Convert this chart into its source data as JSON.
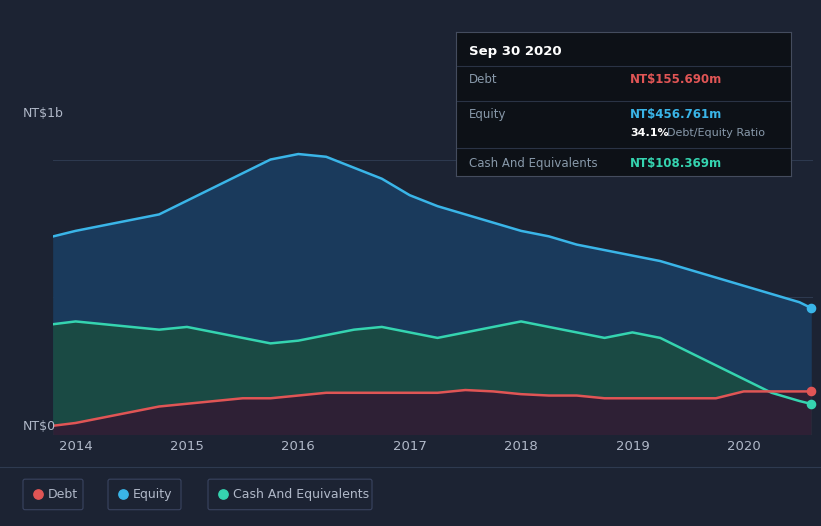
{
  "background_color": "#1c2333",
  "plot_bg_color": "#1c2333",
  "ylabel_top": "NT$1b",
  "ylabel_bottom": "NT$0",
  "x_ticks": [
    2014,
    2015,
    2016,
    2017,
    2018,
    2019,
    2020
  ],
  "debt_color": "#e05555",
  "equity_color": "#3ab5e8",
  "cash_color": "#35d4b0",
  "equity_fill_color": "#1a3a5c",
  "cash_fill_color": "#1a4a44",
  "debt_fill_color": "#2e2035",
  "grid_color": "#2e3a50",
  "text_color": "#b0b8c8",
  "tooltip_bg": "#0d1117",
  "tooltip_title_color": "#ffffff",
  "tooltip_debt_color": "#e05555",
  "tooltip_equity_color": "#3ab5e8",
  "tooltip_ratio_color": "#ffffff",
  "tooltip_cash_color": "#35d4b0",
  "tooltip_label_color": "#8899aa",
  "legend_bg": "#1c2333",
  "legend_border": "#3a4460",
  "tooltip_title": "Sep 30 2020",
  "tooltip_debt_val": "NT$155.690m",
  "tooltip_equity_val": "NT$456.761m",
  "tooltip_ratio_val": "34.1%",
  "tooltip_ratio_label": "Debt/Equity Ratio",
  "tooltip_cash_val": "NT$108.369m",
  "years": [
    2013.8,
    2014.0,
    2014.25,
    2014.5,
    2014.75,
    2015.0,
    2015.25,
    2015.5,
    2015.75,
    2016.0,
    2016.25,
    2016.5,
    2016.75,
    2017.0,
    2017.25,
    2017.5,
    2017.75,
    2018.0,
    2018.25,
    2018.5,
    2018.75,
    2019.0,
    2019.25,
    2019.5,
    2019.75,
    2020.0,
    2020.25,
    2020.5,
    2020.6
  ],
  "equity": [
    0.72,
    0.74,
    0.76,
    0.78,
    0.8,
    0.85,
    0.9,
    0.95,
    1.0,
    1.02,
    1.01,
    0.97,
    0.93,
    0.87,
    0.83,
    0.8,
    0.77,
    0.74,
    0.72,
    0.69,
    0.67,
    0.65,
    0.63,
    0.6,
    0.57,
    0.54,
    0.51,
    0.48,
    0.46
  ],
  "cash": [
    0.4,
    0.41,
    0.4,
    0.39,
    0.38,
    0.39,
    0.37,
    0.35,
    0.33,
    0.34,
    0.36,
    0.38,
    0.39,
    0.37,
    0.35,
    0.37,
    0.39,
    0.41,
    0.39,
    0.37,
    0.35,
    0.37,
    0.35,
    0.3,
    0.25,
    0.2,
    0.15,
    0.12,
    0.11
  ],
  "debt": [
    0.03,
    0.04,
    0.06,
    0.08,
    0.1,
    0.11,
    0.12,
    0.13,
    0.13,
    0.14,
    0.15,
    0.15,
    0.15,
    0.15,
    0.15,
    0.16,
    0.155,
    0.145,
    0.14,
    0.14,
    0.13,
    0.13,
    0.13,
    0.13,
    0.13,
    0.155,
    0.155,
    0.155,
    0.155
  ]
}
